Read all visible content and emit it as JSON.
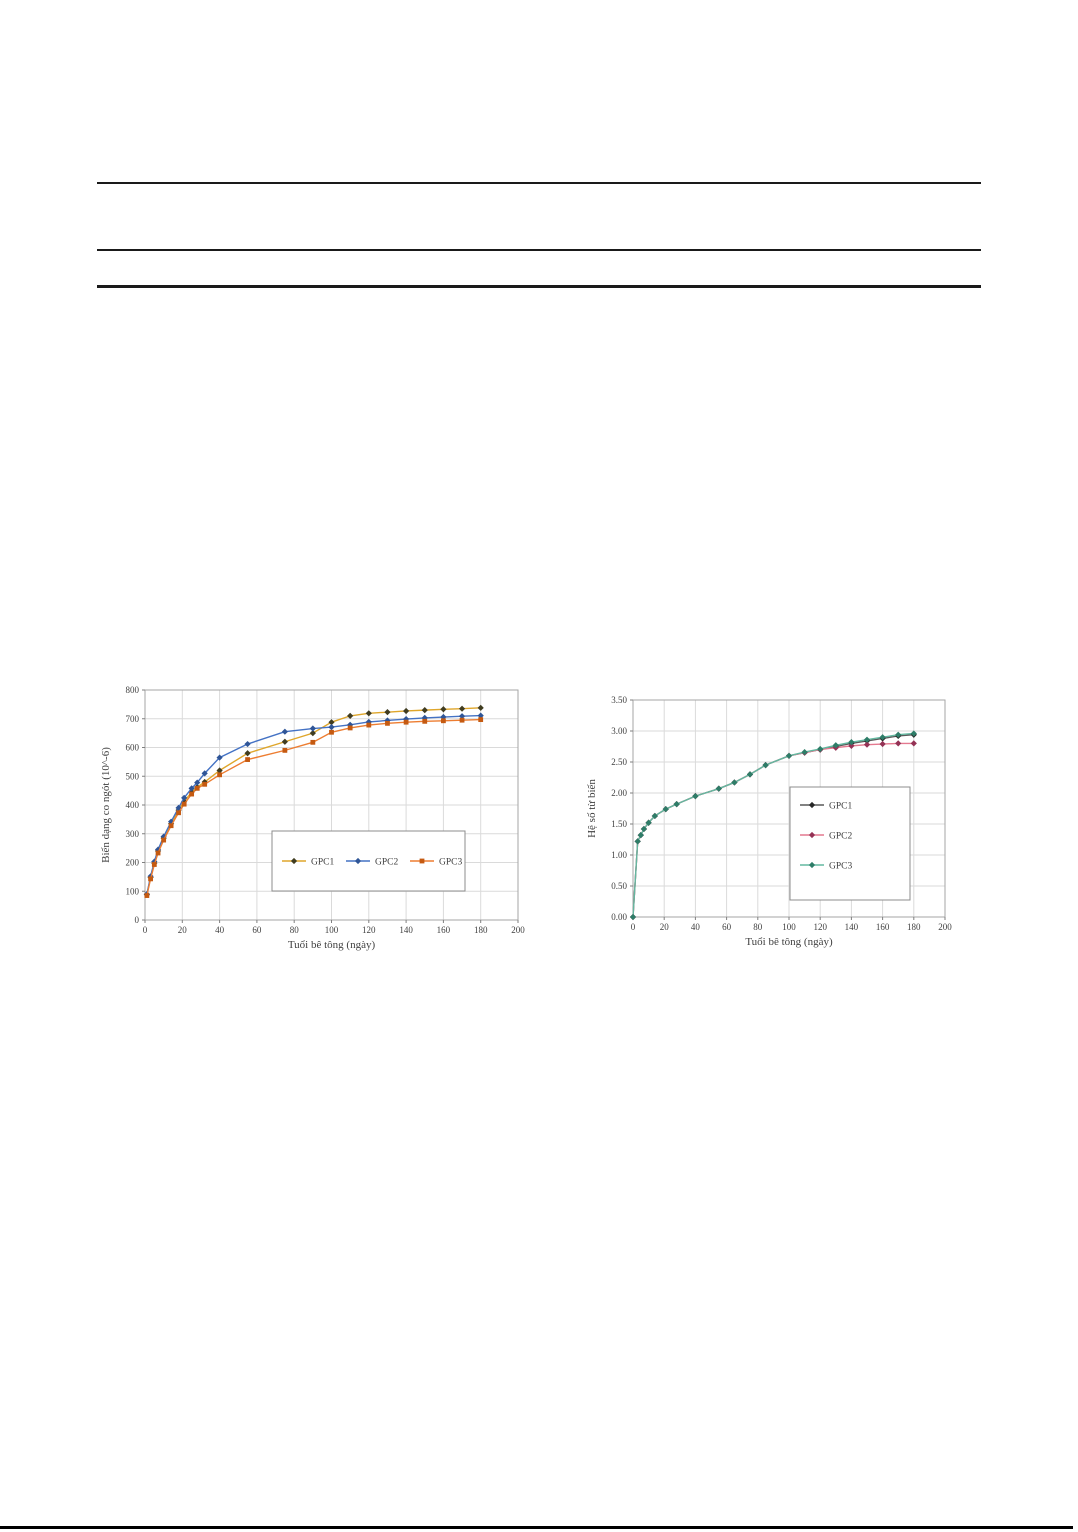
{
  "page": {
    "background": "#ffffff",
    "decorations": {
      "table_rule_color": "#1a1a1a",
      "footer_bar_color": "#000000"
    }
  },
  "chart_data": [
    {
      "type": "line",
      "title": "",
      "xlabel": "Tuổi bê tông (ngày)",
      "ylabel": "Biến dạng co ngót (10^-6)",
      "xlim": [
        0,
        200
      ],
      "ylim": [
        0,
        800
      ],
      "x_ticks": [
        0,
        20,
        40,
        60,
        80,
        100,
        120,
        140,
        160,
        180,
        200
      ],
      "x_tick_labels": [
        "0",
        "20",
        "40",
        "60",
        "80",
        "100",
        "120",
        "140",
        "160",
        "180",
        "200"
      ],
      "y_ticks": [
        0,
        100,
        200,
        300,
        400,
        500,
        600,
        700,
        800
      ],
      "y_tick_labels": [
        "0",
        "100",
        "200",
        "300",
        "400",
        "500",
        "600",
        "700",
        "800"
      ],
      "grid": true,
      "legend_position": "inside-lower-right-horizontal",
      "x": [
        1,
        3,
        5,
        7,
        10,
        14,
        18,
        21,
        25,
        28,
        32,
        40,
        55,
        75,
        90,
        100,
        110,
        120,
        130,
        140,
        150,
        160,
        170,
        180
      ],
      "series": [
        {
          "name": "GPC1",
          "line_color": "#DFA62B",
          "marker_color": "#403C20",
          "marker": "diamond",
          "values": [
            88,
            148,
            198,
            240,
            285,
            335,
            382,
            412,
            445,
            462,
            480,
            520,
            580,
            620,
            650,
            688,
            710,
            719,
            723,
            727,
            730,
            733,
            735,
            738
          ]
        },
        {
          "name": "GPC2",
          "line_color": "#4472C4",
          "marker_color": "#2F5597",
          "marker": "diamond",
          "values": [
            90,
            152,
            203,
            245,
            290,
            342,
            390,
            425,
            458,
            478,
            510,
            565,
            612,
            655,
            666,
            671,
            679,
            689,
            694,
            699,
            703,
            706,
            709,
            711
          ]
        },
        {
          "name": "GPC3",
          "line_color": "#ED7D31",
          "marker_color": "#C55A11",
          "marker": "square",
          "values": [
            85,
            143,
            193,
            233,
            278,
            328,
            373,
            403,
            438,
            458,
            472,
            505,
            558,
            590,
            618,
            653,
            668,
            678,
            684,
            688,
            691,
            693,
            695,
            697
          ]
        }
      ]
    },
    {
      "type": "line",
      "title": "",
      "xlabel": "Tuổi bê tông (ngày)",
      "ylabel": "Hệ số từ biến",
      "xlim": [
        0,
        200
      ],
      "ylim": [
        0,
        3.5
      ],
      "x_ticks": [
        0,
        20,
        40,
        60,
        80,
        100,
        120,
        140,
        160,
        180,
        200
      ],
      "x_tick_labels": [
        "0",
        "20",
        "40",
        "60",
        "80",
        "100",
        "120",
        "140",
        "160",
        "180",
        "200"
      ],
      "y_ticks": [
        0,
        0.5,
        1,
        1.5,
        2,
        2.5,
        3,
        3.5
      ],
      "y_tick_labels": [
        "0.00",
        "0.50",
        "1.00",
        "1.50",
        "2.00",
        "2.50",
        "3.00",
        "3.50"
      ],
      "grid": true,
      "legend_position": "inside-middle-right-vertical",
      "x": [
        0,
        3,
        5,
        7,
        10,
        14,
        21,
        28,
        40,
        55,
        65,
        75,
        85,
        100,
        110,
        120,
        130,
        140,
        150,
        160,
        170,
        180
      ],
      "series": [
        {
          "name": "GPC1",
          "line_color": "#595959",
          "marker_color": "#262626",
          "marker": "diamond",
          "values": [
            0,
            1.22,
            1.32,
            1.42,
            1.52,
            1.63,
            1.74,
            1.82,
            1.95,
            2.07,
            2.17,
            2.3,
            2.45,
            2.6,
            2.65,
            2.7,
            2.75,
            2.8,
            2.84,
            2.88,
            2.92,
            2.94
          ]
        },
        {
          "name": "GPC2",
          "line_color": "#E4798F",
          "marker_color": "#943255",
          "marker": "diamond",
          "values": [
            0,
            1.22,
            1.32,
            1.42,
            1.52,
            1.63,
            1.74,
            1.82,
            1.95,
            2.07,
            2.17,
            2.3,
            2.45,
            2.6,
            2.65,
            2.7,
            2.73,
            2.76,
            2.78,
            2.79,
            2.8,
            2.8
          ]
        },
        {
          "name": "GPC3",
          "line_color": "#63B8A0",
          "marker_color": "#2E7D68",
          "marker": "diamond",
          "values": [
            0,
            1.22,
            1.32,
            1.42,
            1.52,
            1.63,
            1.74,
            1.82,
            1.95,
            2.07,
            2.17,
            2.3,
            2.45,
            2.6,
            2.66,
            2.71,
            2.77,
            2.82,
            2.86,
            2.9,
            2.94,
            2.96
          ]
        }
      ]
    }
  ]
}
